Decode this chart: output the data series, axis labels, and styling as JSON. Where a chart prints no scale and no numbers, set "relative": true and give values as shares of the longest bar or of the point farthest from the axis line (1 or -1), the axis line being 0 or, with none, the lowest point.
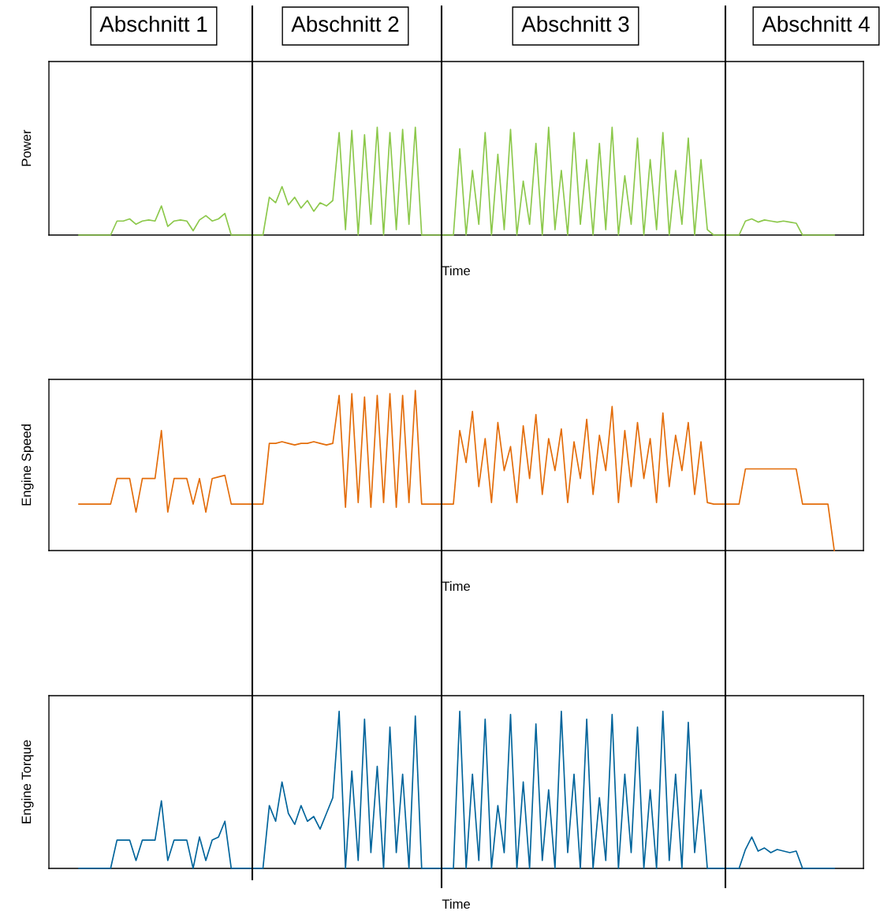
{
  "chart_data": [
    {
      "type": "line",
      "relative": true,
      "ylabel": "Power",
      "xlabel": "Time",
      "tick_labels": false,
      "annotations": [
        "Abschnitt 1",
        "Abschnitt 2",
        "Abschnitt 3",
        "Abschnitt 4"
      ],
      "categories": [
        null,
        null,
        null,
        null,
        null,
        null,
        null,
        null,
        null,
        null,
        null,
        null,
        null,
        null,
        null,
        null,
        null,
        null,
        null,
        null,
        null,
        null,
        null,
        null,
        null,
        null,
        null,
        null,
        null,
        null,
        null,
        null,
        null,
        null,
        null,
        null,
        null,
        null,
        null,
        null,
        null,
        null,
        null,
        null,
        null,
        null,
        null,
        null,
        null,
        null,
        null,
        null,
        null,
        null,
        null,
        null,
        null,
        null,
        null,
        null,
        null,
        null,
        null,
        null,
        null,
        null,
        null,
        null,
        null,
        null,
        null,
        null,
        null,
        null,
        null,
        null,
        null,
        null,
        null,
        null,
        null,
        null,
        null,
        null,
        null,
        null,
        null,
        null,
        null,
        null,
        null,
        null,
        null,
        null,
        null,
        null,
        null,
        null,
        null,
        null,
        null,
        null,
        null,
        null,
        null,
        null,
        null,
        null,
        null,
        null,
        null,
        null,
        null,
        null,
        null,
        null,
        null,
        null,
        null,
        null
      ],
      "series": [
        {
          "color": "#8cc84b",
          "values": [
            0,
            0,
            0,
            0,
            0,
            0,
            0.13,
            0.13,
            0.15,
            0.1,
            0.13,
            0.14,
            0.13,
            0.27,
            0.08,
            0.13,
            0.14,
            0.13,
            0.04,
            0.14,
            0.18,
            0.13,
            0.15,
            0.2,
            0,
            0,
            0,
            0,
            0,
            0,
            0.35,
            0.3,
            0.45,
            0.28,
            0.35,
            0.25,
            0.32,
            0.22,
            0.3,
            0.27,
            0.32,
            0.95,
            0.05,
            0.97,
            0.0,
            0.93,
            0.1,
            1.0,
            0.0,
            0.95,
            0.05,
            0.98,
            0.1,
            1.0,
            0,
            0,
            0,
            0,
            0,
            0,
            0.8,
            0,
            0.6,
            0.1,
            0.95,
            0,
            0.75,
            0.05,
            0.98,
            0,
            0.5,
            0.1,
            0.85,
            0,
            1.0,
            0.05,
            0.6,
            0,
            0.95,
            0.1,
            0.7,
            0,
            0.85,
            0.05,
            1.0,
            0,
            0.55,
            0.1,
            0.9,
            0,
            0.7,
            0.05,
            0.95,
            0,
            0.6,
            0.1,
            0.9,
            0,
            0.7,
            0.05,
            0,
            0,
            0,
            0,
            0,
            0.13,
            0.15,
            0.12,
            0.14,
            0.13,
            0.12,
            0.13,
            0.12,
            0.11,
            0,
            0,
            0,
            0,
            0,
            0
          ]
        }
      ]
    },
    {
      "type": "line",
      "relative": true,
      "ylabel": "Engine Speed",
      "xlabel": "Time",
      "tick_labels": false,
      "categories": [
        null,
        null,
        null,
        null,
        null,
        null,
        null,
        null,
        null,
        null,
        null,
        null,
        null,
        null,
        null,
        null,
        null,
        null,
        null,
        null,
        null,
        null,
        null,
        null,
        null,
        null,
        null,
        null,
        null,
        null,
        null,
        null,
        null,
        null,
        null,
        null,
        null,
        null,
        null,
        null,
        null,
        null,
        null,
        null,
        null,
        null,
        null,
        null,
        null,
        null,
        null,
        null,
        null,
        null,
        null,
        null,
        null,
        null,
        null,
        null,
        null,
        null,
        null,
        null,
        null,
        null,
        null,
        null,
        null,
        null,
        null,
        null,
        null,
        null,
        null,
        null,
        null,
        null,
        null,
        null,
        null,
        null,
        null,
        null,
        null,
        null,
        null,
        null,
        null,
        null,
        null,
        null,
        null,
        null,
        null,
        null,
        null,
        null,
        null,
        null,
        null,
        null,
        null,
        null,
        null,
        null,
        null,
        null,
        null,
        null,
        null,
        null,
        null,
        null,
        null,
        null,
        null,
        null,
        null,
        null
      ],
      "series": [
        {
          "color": "#e36c09",
          "values": [
            0.29,
            0.29,
            0.29,
            0.29,
            0.29,
            0.29,
            0.45,
            0.45,
            0.45,
            0.24,
            0.45,
            0.45,
            0.45,
            0.75,
            0.24,
            0.45,
            0.45,
            0.45,
            0.29,
            0.45,
            0.24,
            0.45,
            0.46,
            0.47,
            0.29,
            0.29,
            0.29,
            0.29,
            0.29,
            0.29,
            0.67,
            0.67,
            0.68,
            0.67,
            0.66,
            0.67,
            0.67,
            0.68,
            0.67,
            0.66,
            0.67,
            0.97,
            0.27,
            0.98,
            0.3,
            0.96,
            0.27,
            0.97,
            0.3,
            0.98,
            0.27,
            0.97,
            0.3,
            1.0,
            0.29,
            0.29,
            0.29,
            0.29,
            0.29,
            0.29,
            0.75,
            0.55,
            0.87,
            0.4,
            0.7,
            0.3,
            0.8,
            0.5,
            0.65,
            0.3,
            0.78,
            0.45,
            0.85,
            0.35,
            0.7,
            0.5,
            0.76,
            0.3,
            0.68,
            0.45,
            0.82,
            0.35,
            0.72,
            0.5,
            0.9,
            0.3,
            0.75,
            0.4,
            0.8,
            0.45,
            0.7,
            0.3,
            0.86,
            0.4,
            0.72,
            0.5,
            0.8,
            0.35,
            0.68,
            0.3,
            0.29,
            0.29,
            0.29,
            0.29,
            0.29,
            0.51,
            0.51,
            0.51,
            0.51,
            0.51,
            0.51,
            0.51,
            0.51,
            0.51,
            0.29,
            0.29,
            0.29,
            0.29,
            0.29,
            0
          ]
        }
      ]
    },
    {
      "type": "line",
      "relative": true,
      "ylabel": "Engine Torque",
      "xlabel": "Time",
      "tick_labels": false,
      "categories": [
        null,
        null,
        null,
        null,
        null,
        null,
        null,
        null,
        null,
        null,
        null,
        null,
        null,
        null,
        null,
        null,
        null,
        null,
        null,
        null,
        null,
        null,
        null,
        null,
        null,
        null,
        null,
        null,
        null,
        null,
        null,
        null,
        null,
        null,
        null,
        null,
        null,
        null,
        null,
        null,
        null,
        null,
        null,
        null,
        null,
        null,
        null,
        null,
        null,
        null,
        null,
        null,
        null,
        null,
        null,
        null,
        null,
        null,
        null,
        null,
        null,
        null,
        null,
        null,
        null,
        null,
        null,
        null,
        null,
        null,
        null,
        null,
        null,
        null,
        null,
        null,
        null,
        null,
        null,
        null,
        null,
        null,
        null,
        null,
        null,
        null,
        null,
        null,
        null,
        null,
        null,
        null,
        null,
        null,
        null,
        null,
        null,
        null,
        null,
        null,
        null,
        null,
        null,
        null,
        null,
        null,
        null,
        null,
        null,
        null,
        null,
        null,
        null,
        null,
        null,
        null,
        null,
        null,
        null,
        null
      ],
      "series": [
        {
          "color": "#00649b",
          "values": [
            0,
            0,
            0,
            0,
            0,
            0,
            0.18,
            0.18,
            0.18,
            0.05,
            0.18,
            0.18,
            0.18,
            0.43,
            0.05,
            0.18,
            0.18,
            0.18,
            0.0,
            0.2,
            0.05,
            0.18,
            0.2,
            0.3,
            0,
            0,
            0,
            0,
            0,
            0,
            0.4,
            0.3,
            0.55,
            0.35,
            0.28,
            0.4,
            0.3,
            0.33,
            0.25,
            0.35,
            0.45,
            1.0,
            0.0,
            0.62,
            0.05,
            0.95,
            0.1,
            0.65,
            0.0,
            0.9,
            0.1,
            0.6,
            0.0,
            0.97,
            0,
            0,
            0,
            0,
            0,
            0,
            1.0,
            0,
            0.6,
            0.05,
            0.95,
            0,
            0.4,
            0.1,
            0.98,
            0,
            0.55,
            0,
            0.92,
            0.05,
            0.5,
            0,
            1.0,
            0.1,
            0.6,
            0,
            0.95,
            0,
            0.45,
            0.05,
            0.98,
            0,
            0.6,
            0.1,
            0.9,
            0,
            0.5,
            0,
            1.0,
            0.05,
            0.6,
            0,
            0.93,
            0.1,
            0.5,
            0,
            0,
            0,
            0,
            0,
            0,
            0.12,
            0.2,
            0.11,
            0.13,
            0.1,
            0.12,
            0.11,
            0.1,
            0.11,
            0,
            0,
            0,
            0,
            0,
            0
          ]
        }
      ]
    }
  ]
}
